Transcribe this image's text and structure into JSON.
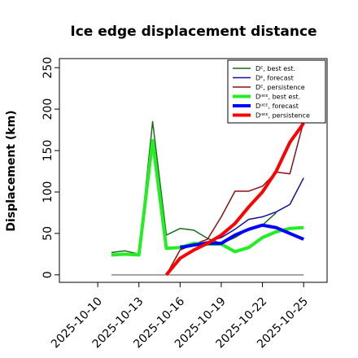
{
  "chart_data": {
    "type": "line",
    "title": "Ice edge displacement distance",
    "y_label": "Displacement (km)",
    "x": [
      "2025-10-11",
      "2025-10-12",
      "2025-10-13",
      "2025-10-14",
      "2025-10-15",
      "2025-10-16",
      "2025-10-17",
      "2025-10-18",
      "2025-10-19",
      "2025-10-20",
      "2025-10-21",
      "2025-10-22",
      "2025-10-23",
      "2025-10-24",
      "2025-10-25"
    ],
    "series": [
      {
        "name": "Dᴱ, best est.",
        "color": "#1a6b1a",
        "width": 1.5,
        "values": [
          27,
          29,
          25,
          185,
          48,
          56,
          54,
          44,
          38,
          45,
          55,
          60,
          75,
          null,
          null
        ]
      },
      {
        "name": "Dᴱ, forecast",
        "color": "#1010a0",
        "width": 1.5,
        "values": [
          null,
          null,
          null,
          null,
          null,
          35,
          37,
          40,
          45,
          55,
          67,
          70,
          76,
          85,
          117
        ]
      },
      {
        "name": "Dᴱ, persistence",
        "color": "#8b1010",
        "width": 1.5,
        "values": [
          null,
          null,
          null,
          null,
          0,
          30,
          37,
          43,
          70,
          101,
          101,
          107,
          124,
          122,
          185
        ]
      },
      {
        "name": "Dᴵᴵᴱᴱ, best est.",
        "color": "#22ee22",
        "width": 4,
        "values": [
          24,
          25,
          24,
          162,
          32,
          33,
          38,
          37,
          37,
          28,
          33,
          45,
          52,
          56,
          57
        ]
      },
      {
        "name": "Dᴵᴵᴱᴱ, forecast",
        "color": "#0000ff",
        "width": 4,
        "values": [
          null,
          null,
          null,
          null,
          null,
          33,
          36,
          38,
          38,
          48,
          55,
          60,
          57,
          50,
          43
        ]
      },
      {
        "name": "Dᴵᴵᴱᴱ, persistence",
        "color": "#ff0000",
        "width": 4,
        "values": [
          null,
          null,
          null,
          null,
          0,
          20,
          30,
          38,
          48,
          62,
          82,
          100,
          125,
          160,
          183
        ]
      }
    ],
    "reference_line": {
      "y": 0,
      "from": "2025-10-11",
      "to": "2025-10-25",
      "color": "#888888"
    },
    "xlim": [
      "2025-10-07T05:00",
      "2025-10-26T17:00"
    ],
    "xticks": [
      "2025-10-10",
      "2025-10-13",
      "2025-10-16",
      "2025-10-19",
      "2025-10-22",
      "2025-10-25"
    ],
    "xtick_colors": [
      "#000000",
      "#000000",
      "#228b22",
      "#000000",
      "#000000",
      "#000000"
    ],
    "ylim": [
      -9,
      261
    ],
    "yticks": [
      0,
      50,
      100,
      150,
      200,
      250
    ],
    "legend": "upper right"
  }
}
